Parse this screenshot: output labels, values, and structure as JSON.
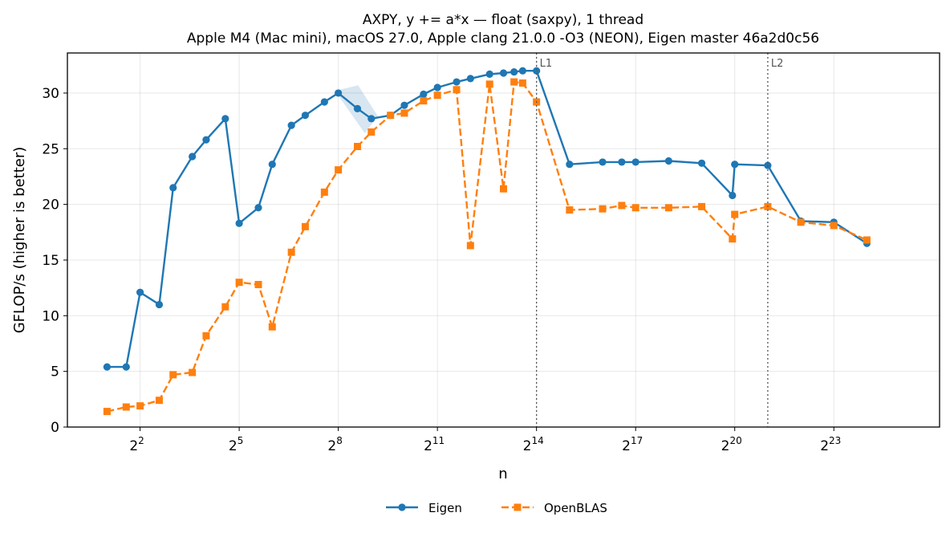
{
  "chart_data": {
    "type": "line",
    "title_line1": "AXPY, y += a*x — float (saxpy), 1 thread",
    "title_line2": "Apple M4 (Mac mini), macOS 27.0, Apple clang 21.0.0 -O3 (NEON), Eigen master 46a2d0c56",
    "xlabel": "n",
    "ylabel": "GFLOP/s (higher is better)",
    "x_scale": "log2",
    "xlim_log2": [
      -0.2,
      26.2
    ],
    "ylim": [
      0,
      33.6
    ],
    "grid": true,
    "legend_position": "bottom-center",
    "x_tick_exponents": [
      2,
      5,
      8,
      11,
      14,
      17,
      20,
      23
    ],
    "x_tick_base": "2",
    "y_ticks": [
      0,
      5,
      10,
      15,
      20,
      25,
      30
    ],
    "annotations": [
      {
        "label": "L1",
        "x_log2": 14
      },
      {
        "label": "L2",
        "x_log2": 21
      }
    ],
    "series": [
      {
        "name": "Eigen",
        "color": "#1f77b4",
        "marker": "circle",
        "linestyle": "solid",
        "x_log2": [
          1,
          1.58,
          2,
          2.58,
          3,
          3.58,
          4,
          4.58,
          5,
          5.58,
          6,
          6.58,
          7,
          7.58,
          8,
          8.58,
          9,
          9.58,
          10,
          10.58,
          11,
          11.58,
          12,
          12.58,
          13,
          13.32,
          13.58,
          14,
          15,
          16,
          16.58,
          17,
          18,
          19,
          19.93,
          20,
          21,
          22,
          23,
          24
        ],
        "values": [
          5.4,
          5.4,
          12.1,
          11.0,
          21.5,
          24.3,
          25.8,
          27.7,
          18.3,
          19.7,
          23.6,
          27.1,
          28.0,
          29.2,
          30.0,
          28.6,
          27.7,
          28.0,
          28.9,
          29.9,
          30.5,
          31.0,
          31.3,
          31.7,
          31.8,
          31.9,
          32.0,
          32.0,
          23.6,
          23.8,
          23.8,
          23.8,
          23.9,
          23.7,
          20.8,
          23.6,
          23.5,
          18.5,
          18.4,
          16.5
        ]
      },
      {
        "name": "OpenBLAS",
        "color": "#ff7f0e",
        "marker": "square",
        "linestyle": "dashed",
        "x_log2": [
          1,
          1.58,
          2,
          2.58,
          3,
          3.58,
          4,
          4.58,
          5,
          5.58,
          6,
          6.58,
          7,
          7.58,
          8,
          8.58,
          9,
          9.58,
          10,
          10.58,
          11,
          11.58,
          12,
          12.58,
          13,
          13.32,
          13.58,
          14,
          15,
          16,
          16.58,
          17,
          18,
          19,
          19.93,
          20,
          21,
          22,
          23,
          24
        ],
        "values": [
          1.4,
          1.8,
          1.9,
          2.4,
          4.7,
          4.9,
          8.2,
          10.8,
          13.0,
          12.8,
          9.0,
          15.7,
          18.0,
          21.1,
          23.1,
          25.2,
          26.5,
          28.0,
          28.2,
          29.3,
          29.8,
          30.3,
          16.3,
          30.8,
          21.4,
          31.0,
          30.9,
          29.2,
          19.5,
          19.6,
          19.9,
          19.7,
          19.7,
          19.8,
          16.9,
          19.1,
          19.8,
          18.4,
          18.1,
          16.8
        ]
      }
    ]
  }
}
